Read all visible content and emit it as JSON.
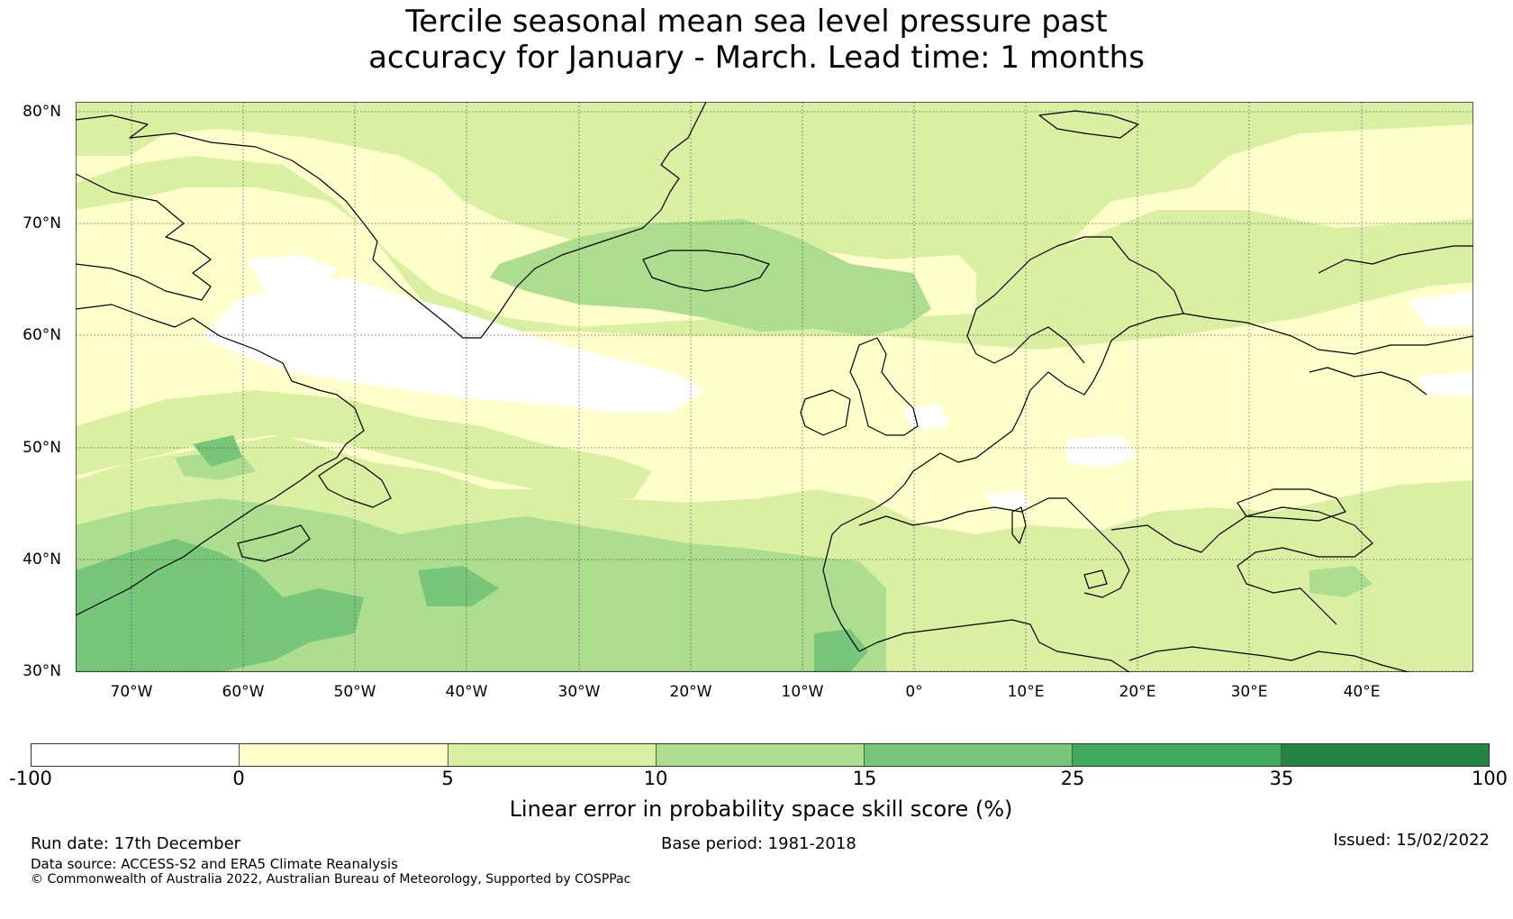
{
  "title_line1": "Tercile seasonal mean sea level pressure past",
  "title_line2": "accuracy for January - March. Lead time: 1 months",
  "map": {
    "lat_labels": [
      "80°N",
      "70°N",
      "60°N",
      "50°N",
      "40°N",
      "30°N"
    ],
    "lon_labels": [
      "70°W",
      "60°W",
      "50°W",
      "40°W",
      "30°W",
      "20°W",
      "10°W",
      "0°",
      "10°E",
      "20°E",
      "30°E",
      "40°E"
    ],
    "lon_range": [
      -75,
      50
    ],
    "lat_range": [
      30,
      81
    ],
    "gridlines": true
  },
  "colorbar": {
    "ticks": [
      "-100",
      "0",
      "5",
      "10",
      "15",
      "25",
      "35",
      "100"
    ],
    "colors": [
      "#ffffff",
      "#ffffcc",
      "#d9f0a3",
      "#addd8e",
      "#78c679",
      "#41ab5d",
      "#238443"
    ],
    "label": "Linear error in probability space skill score (%)"
  },
  "footer": {
    "run_date": "Run date: 17th December",
    "base_period": "Base period: 1981-2018",
    "issued": "Issued: 15/02/2022",
    "data_source": "Data source: ACCESS-S2 and ERA5 Climate Reanalysis",
    "copyright": "© Commonwealth of Australia 2022, Australian Bureau of Meteorology, Supported by COSPPac"
  }
}
